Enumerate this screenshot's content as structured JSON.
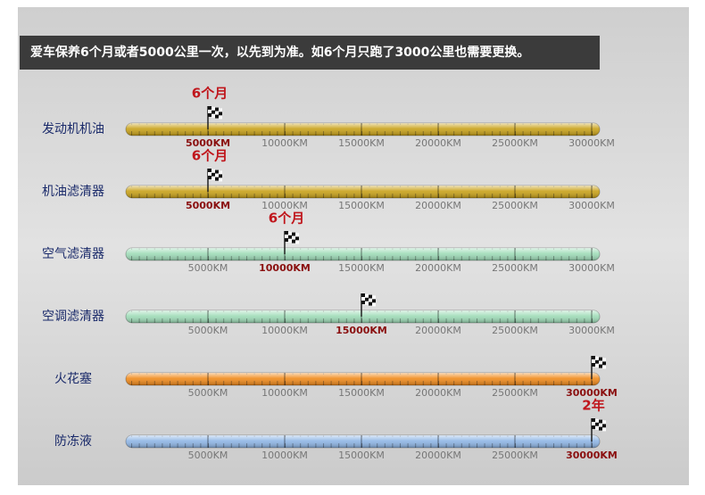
{
  "chart_data": {
    "type": "bar",
    "title": "爱车保养6个月或者5000公里一次，以先到为准。如6个月只跑了3000公里也需要更换。",
    "categories": [
      "发动机机油",
      "机油滤清器",
      "空气滤清器",
      "空调滤清器",
      "火花塞",
      "防冻液"
    ],
    "values": [
      5000,
      5000,
      10000,
      15000,
      30000,
      30000
    ],
    "annotations": [
      "6个月",
      "6个月",
      "6个月",
      null,
      null,
      "2年"
    ],
    "colors": [
      "#c9a21a",
      "#c9a21a",
      "#9fdcb8",
      "#9fdcb8",
      "#f08a1c",
      "#8fb6e6"
    ],
    "xlim": [
      0,
      30000
    ],
    "xticks": [
      {
        "value": 5000,
        "label": "5000KM"
      },
      {
        "value": 10000,
        "label": "10000KM"
      },
      {
        "value": 15000,
        "label": "15000KM"
      },
      {
        "value": 20000,
        "label": "20000KM"
      },
      {
        "value": 25000,
        "label": "25000KM"
      },
      {
        "value": 30000,
        "label": "30000KM"
      }
    ]
  }
}
